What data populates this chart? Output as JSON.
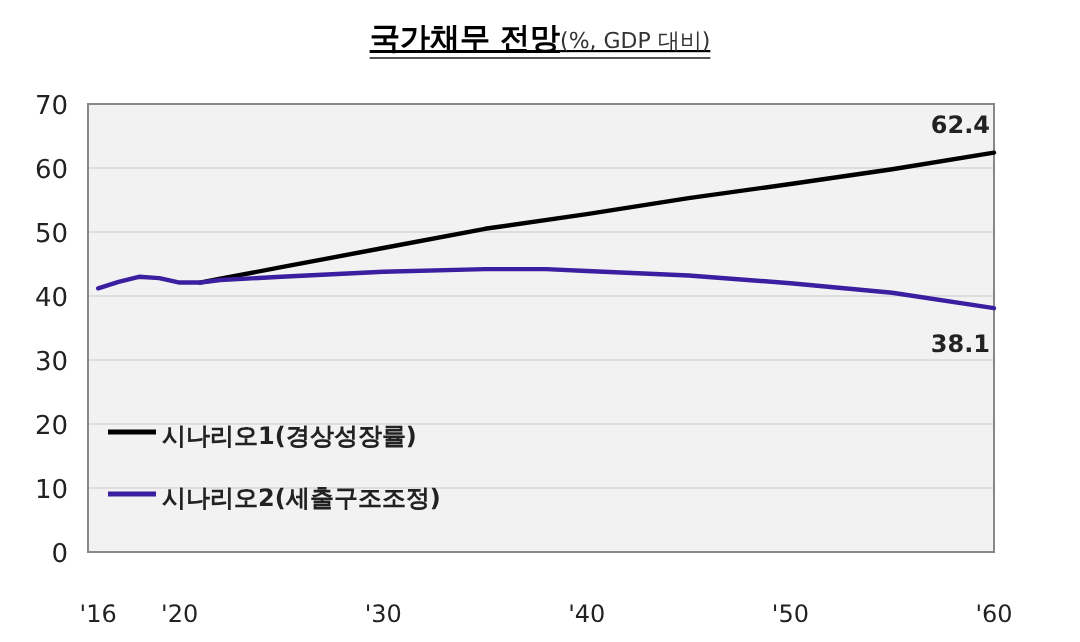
{
  "chart_data": {
    "type": "line",
    "title": "국가채무 전망",
    "subtitle": "(%, GDP 대비)",
    "xlim": [
      2015.5,
      2060
    ],
    "xticks": [
      {
        "value": 2016,
        "label": "'16"
      },
      {
        "value": 2020,
        "label": "'20"
      },
      {
        "value": 2030,
        "label": "'30"
      },
      {
        "value": 2040,
        "label": "'40"
      },
      {
        "value": 2050,
        "label": "'50"
      },
      {
        "value": 2060,
        "label": "'60"
      }
    ],
    "ylim": [
      0,
      70
    ],
    "yticks": [
      0,
      10,
      20,
      30,
      40,
      50,
      60,
      70
    ],
    "grid": "y",
    "legend": "bottom left",
    "marker": "none",
    "line_style": "solid",
    "series": [
      {
        "name": "시나리오1(경상성장률)",
        "color": "#000000",
        "x": [
          2021,
          2022,
          2025,
          2030,
          2035,
          2040,
          2045,
          2050,
          2055,
          2060
        ],
        "values": [
          42.1,
          42.7,
          44.5,
          47.5,
          50.5,
          52.8,
          55.3,
          57.5,
          59.8,
          62.4
        ],
        "value_labels": [
          null,
          null,
          null,
          null,
          null,
          null,
          null,
          null,
          null,
          "62.4"
        ]
      },
      {
        "name": "시나리오2(세출구조조정)",
        "color": "#3a1fa0",
        "x": [
          2016,
          2017,
          2018,
          2019,
          2020,
          2021,
          2022,
          2025,
          2030,
          2035,
          2038,
          2040,
          2045,
          2050,
          2055,
          2060
        ],
        "values": [
          41.2,
          42.2,
          43.0,
          42.8,
          42.1,
          42.1,
          42.5,
          43.0,
          43.8,
          44.2,
          44.2,
          43.9,
          43.2,
          42.0,
          40.5,
          38.1
        ],
        "value_labels": [
          null,
          null,
          null,
          null,
          null,
          null,
          null,
          null,
          null,
          null,
          null,
          null,
          null,
          null,
          null,
          "38.1"
        ]
      }
    ]
  }
}
